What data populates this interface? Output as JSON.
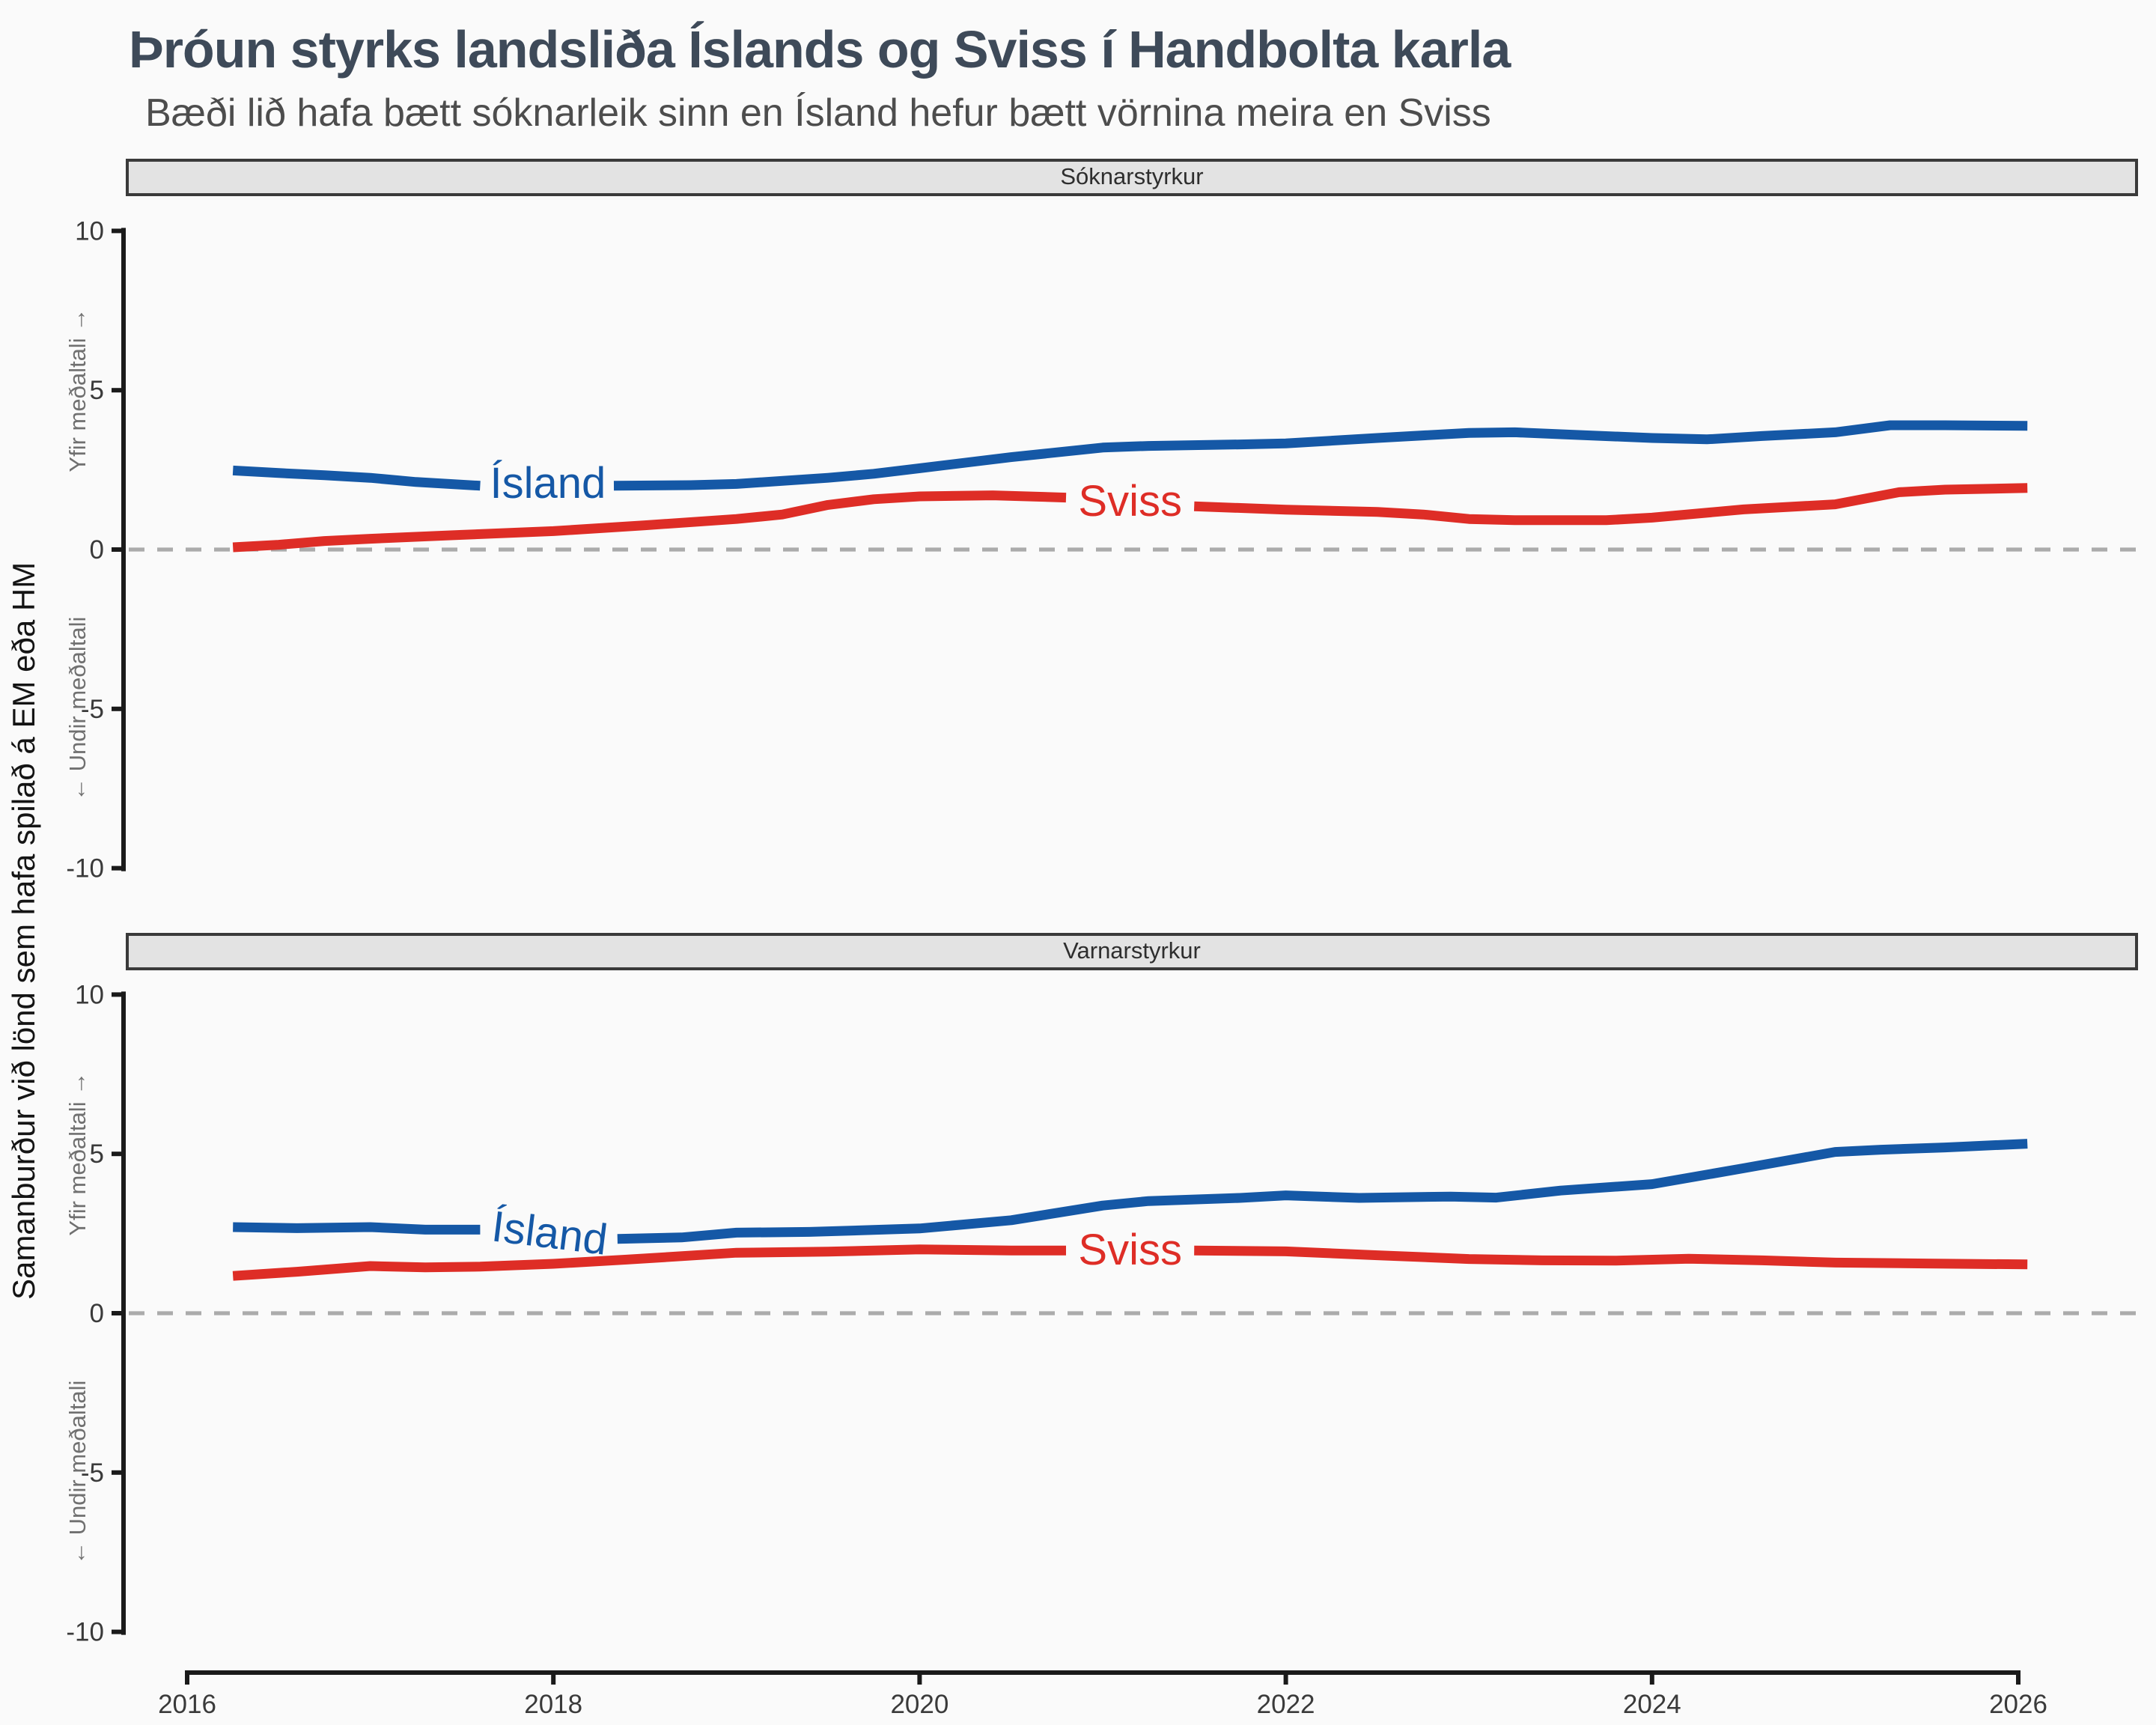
{
  "header": {
    "title": "Þróun styrks landsliða Íslands og Sviss í Handbolta karla",
    "subtitle": "Bæði lið hafa bætt sóknarleik sinn en Ísland hefur bætt vörnina meira en Sviss"
  },
  "y_axis_label": "Samanburður við lönd sem hafa spilað á EM eða HM",
  "annotations": {
    "above": "Yfir meðaltali →",
    "below": "← Undir meðaltali"
  },
  "colors": {
    "island": "#1558a6",
    "sviss": "#de2d26",
    "title": "#3e4a59",
    "dashed_zero_line": "#ababab",
    "axis": "#1a1a1a",
    "strip_bg": "#e3e3e3",
    "background": "#fafafa"
  },
  "chart_data": [
    {
      "type": "line",
      "panel": "Sóknarstyrkur",
      "xlim": [
        2016,
        2026
      ],
      "ylim": [
        -10,
        10
      ],
      "x_ticks": [
        2016,
        2018,
        2020,
        2022,
        2024,
        2026
      ],
      "y_ticks": [
        10,
        5,
        0,
        -5,
        -10
      ],
      "grid": "off",
      "zero_line": "dashed",
      "series": [
        {
          "name": "Ísland",
          "color": "#1558a6",
          "label": {
            "text": "Ísland",
            "year": 2017.97,
            "value": 2.05,
            "rotation": 0
          },
          "segments": [
            [
              [
                2016.25,
                2.48
              ],
              [
                2016.5,
                2.4
              ],
              [
                2016.75,
                2.33
              ],
              [
                2017,
                2.25
              ],
              [
                2017.25,
                2.12
              ],
              [
                2017.6,
                2.0
              ]
            ],
            [
              [
                2018.33,
                2.0
              ],
              [
                2018.75,
                2.02
              ],
              [
                2019,
                2.06
              ],
              [
                2019.5,
                2.25
              ],
              [
                2019.75,
                2.38
              ],
              [
                2020,
                2.55
              ],
              [
                2020.5,
                2.9
              ],
              [
                2021,
                3.2
              ],
              [
                2021.25,
                3.25
              ],
              [
                2021.75,
                3.3
              ],
              [
                2022,
                3.33
              ],
              [
                2022.5,
                3.5
              ],
              [
                2023,
                3.66
              ],
              [
                2023.25,
                3.68
              ],
              [
                2023.5,
                3.62
              ],
              [
                2024,
                3.5
              ],
              [
                2024.3,
                3.46
              ],
              [
                2024.6,
                3.56
              ],
              [
                2025,
                3.68
              ],
              [
                2025.3,
                3.9
              ],
              [
                2025.6,
                3.9
              ],
              [
                2026.05,
                3.88
              ]
            ]
          ]
        },
        {
          "name": "Sviss",
          "color": "#de2d26",
          "label": {
            "text": "Sviss",
            "year": 2021.15,
            "value": 1.48,
            "rotation": 0
          },
          "segments": [
            [
              [
                2016.25,
                0.07
              ],
              [
                2016.5,
                0.15
              ],
              [
                2016.75,
                0.27
              ],
              [
                2017,
                0.34
              ],
              [
                2017.5,
                0.46
              ],
              [
                2018,
                0.58
              ],
              [
                2018.5,
                0.76
              ],
              [
                2019,
                0.96
              ],
              [
                2019.25,
                1.1
              ],
              [
                2019.5,
                1.4
              ],
              [
                2019.75,
                1.58
              ],
              [
                2020,
                1.67
              ],
              [
                2020.4,
                1.7
              ],
              [
                2020.8,
                1.63
              ]
            ],
            [
              [
                2021.5,
                1.36
              ],
              [
                2022,
                1.25
              ],
              [
                2022.5,
                1.18
              ],
              [
                2022.75,
                1.1
              ],
              [
                2023,
                0.96
              ],
              [
                2023.25,
                0.92
              ],
              [
                2023.75,
                0.92
              ],
              [
                2024,
                1.0
              ],
              [
                2024.5,
                1.26
              ],
              [
                2025,
                1.42
              ],
              [
                2025.35,
                1.8
              ],
              [
                2025.6,
                1.88
              ],
              [
                2026.05,
                1.93
              ]
            ]
          ]
        }
      ]
    },
    {
      "type": "line",
      "panel": "Varnarstyrkur",
      "xlim": [
        2016,
        2026
      ],
      "ylim": [
        -10,
        10
      ],
      "x_ticks": [
        2016,
        2018,
        2020,
        2022,
        2024,
        2026
      ],
      "y_ticks": [
        10,
        5,
        0,
        -5,
        -10
      ],
      "grid": "off",
      "zero_line": "dashed",
      "series": [
        {
          "name": "Ísland",
          "color": "#1558a6",
          "label": {
            "text": "Ísland",
            "year": 2017.97,
            "value": 2.48,
            "rotation": 7
          },
          "segments": [
            [
              [
                2016.25,
                2.7
              ],
              [
                2016.6,
                2.67
              ],
              [
                2017,
                2.7
              ],
              [
                2017.3,
                2.62
              ],
              [
                2017.6,
                2.62
              ]
            ],
            [
              [
                2018.35,
                2.33
              ],
              [
                2018.7,
                2.38
              ],
              [
                2019,
                2.53
              ],
              [
                2019.4,
                2.55
              ],
              [
                2020,
                2.66
              ],
              [
                2020.5,
                2.92
              ],
              [
                2021,
                3.38
              ],
              [
                2021.25,
                3.52
              ],
              [
                2021.75,
                3.62
              ],
              [
                2022,
                3.7
              ],
              [
                2022.4,
                3.62
              ],
              [
                2022.9,
                3.66
              ],
              [
                2023.15,
                3.63
              ],
              [
                2023.5,
                3.85
              ],
              [
                2024,
                4.05
              ],
              [
                2024.5,
                4.55
              ],
              [
                2025,
                5.06
              ],
              [
                2025.25,
                5.13
              ],
              [
                2025.6,
                5.2
              ],
              [
                2026.05,
                5.32
              ]
            ]
          ]
        },
        {
          "name": "Sviss",
          "color": "#de2d26",
          "label": {
            "text": "Sviss",
            "year": 2021.15,
            "value": 1.95,
            "rotation": 0
          },
          "segments": [
            [
              [
                2016.25,
                1.17
              ],
              [
                2016.6,
                1.3
              ],
              [
                2017,
                1.48
              ],
              [
                2017.3,
                1.44
              ],
              [
                2017.6,
                1.46
              ],
              [
                2018,
                1.55
              ],
              [
                2018.4,
                1.68
              ],
              [
                2019,
                1.9
              ],
              [
                2019.5,
                1.93
              ],
              [
                2020,
                2.0
              ],
              [
                2020.5,
                1.97
              ],
              [
                2020.8,
                1.97
              ]
            ],
            [
              [
                2021.5,
                1.97
              ],
              [
                2022,
                1.94
              ],
              [
                2022.5,
                1.82
              ],
              [
                2023,
                1.7
              ],
              [
                2023.4,
                1.66
              ],
              [
                2023.8,
                1.65
              ],
              [
                2024.2,
                1.71
              ],
              [
                2024.6,
                1.66
              ],
              [
                2025,
                1.59
              ],
              [
                2025.5,
                1.56
              ],
              [
                2026.05,
                1.53
              ]
            ]
          ]
        }
      ]
    }
  ]
}
